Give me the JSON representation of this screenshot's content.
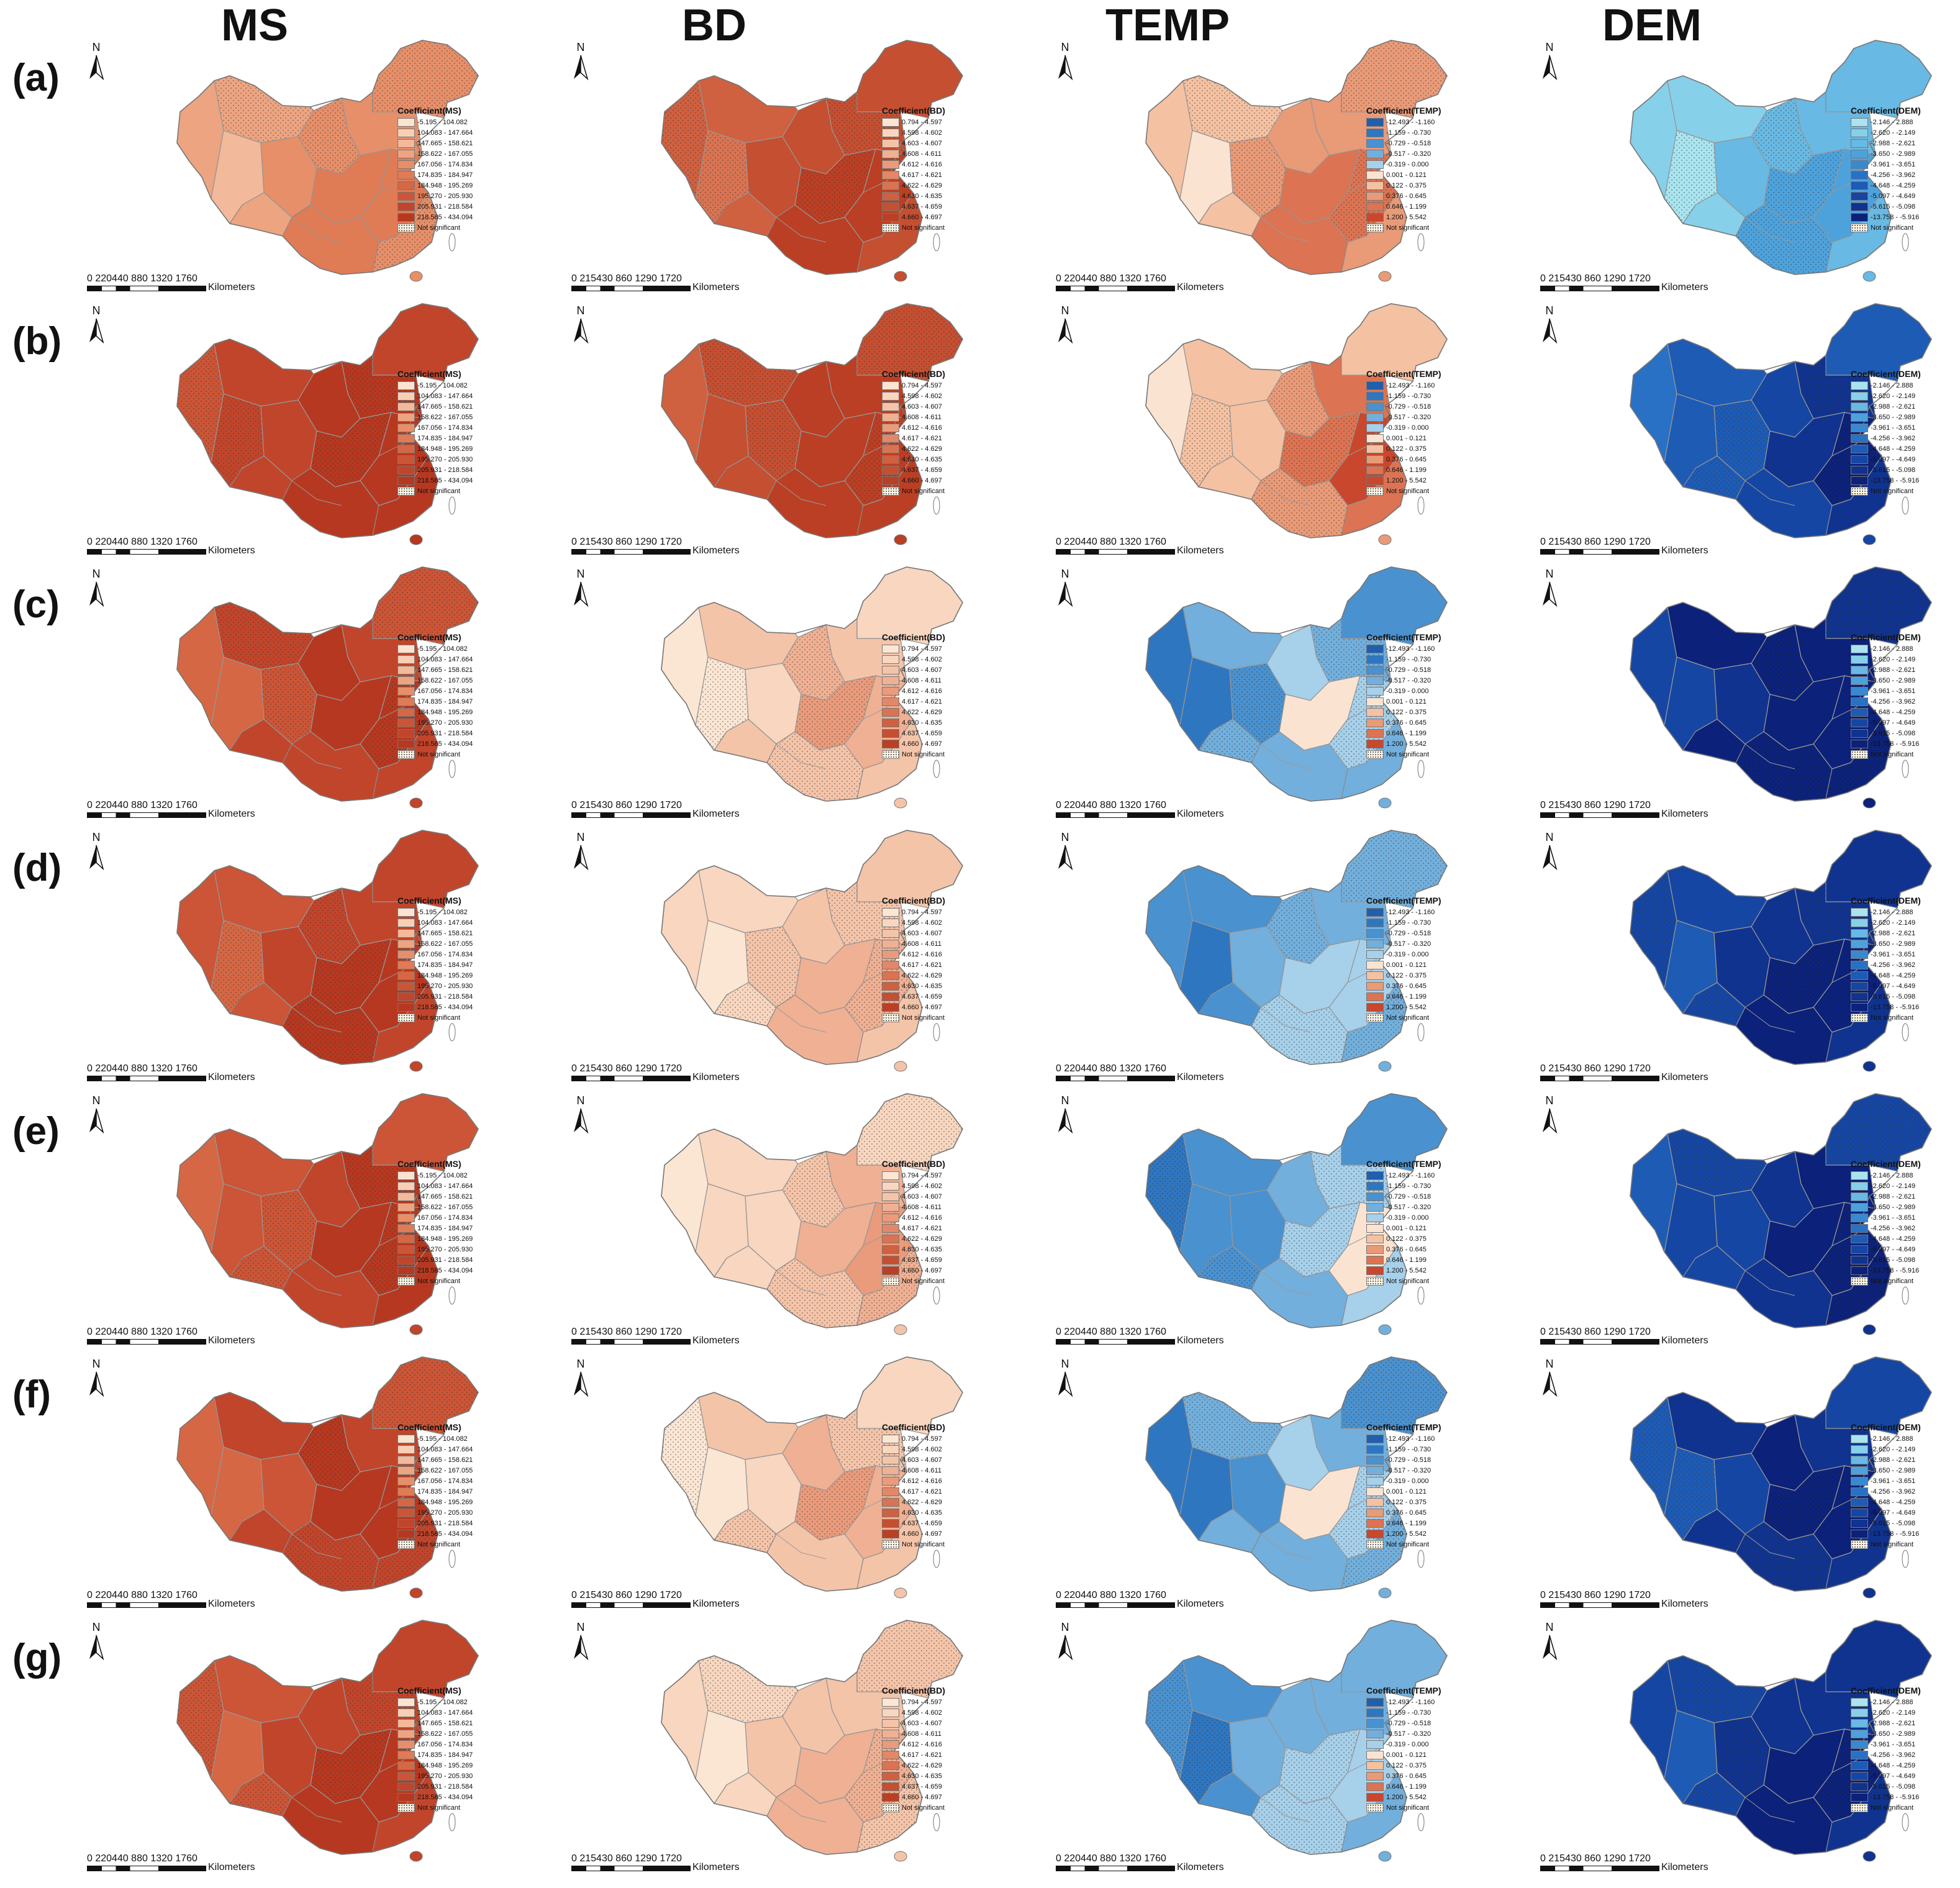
{
  "columns": [
    {
      "title": "MS",
      "legend_title": "Coefficient(MS)",
      "scale_ticks": "0  220440   880    1320    1760",
      "scale_unit": "Kilometers",
      "classes": [
        "-5.195 - 104.082",
        "104.083 - 147.664",
        "147.665 - 158.621",
        "158.622 - 167.055",
        "167.056 - 174.834",
        "174.835 - 184.947",
        "184.948 - 195.269",
        "195.270 - 205.930",
        "205.931 - 218.584",
        "218.585 - 434.094"
      ],
      "colors": [
        "#fbe3d2",
        "#f7cfb5",
        "#f2b99a",
        "#eda481",
        "#e68f69",
        "#df7b55",
        "#d56744",
        "#cb5536",
        "#c1452b",
        "#b73820"
      ]
    },
    {
      "title": "BD",
      "legend_title": "Coefficient(BD)",
      "scale_ticks": "0  215430   860    1290    1720",
      "scale_unit": "Kilometers",
      "classes": [
        "0.794 - 4.597",
        "4.598 - 4.602",
        "4.603 - 4.607",
        "4.608 - 4.611",
        "4.612 - 4.616",
        "4.617 - 4.621",
        "4.622 - 4.629",
        "4.630 - 4.635",
        "4.637 - 4.659",
        "4.660 - 4.697"
      ],
      "colors": [
        "#fbe6d4",
        "#f8d6bf",
        "#f4c4a9",
        "#efb093",
        "#e99b7c",
        "#e28767",
        "#d97352",
        "#cf6040",
        "#c54f31",
        "#bb3f24"
      ]
    },
    {
      "title": "TEMP",
      "legend_title": "Coefficient(TEMP)",
      "scale_ticks": "0  220440   880    1320    1760",
      "scale_unit": "Kilometers",
      "classes": [
        "-12.493 - -1.160",
        "-1.159 - -0.730",
        "-0.729 - -0.518",
        "-0.517 - -0.320",
        "-0.319 - 0.000",
        "0.001 - 0.121",
        "0.122 - 0.375",
        "0.376 - 0.645",
        "0.646 - 1.199",
        "1.200 - 5.542"
      ],
      "colors": [
        "#1f5fae",
        "#2f76c0",
        "#4a91cf",
        "#72afdc",
        "#a7d0ea",
        "#fbe3d2",
        "#f4c1a2",
        "#e99a77",
        "#dc7352",
        "#c9472d"
      ]
    },
    {
      "title": "DEM",
      "legend_title": "Coefficient(DEM)",
      "scale_ticks": "0  215430   860    1290    1720",
      "scale_unit": "Kilometers",
      "classes": [
        "-2.146 - 2.888",
        "-2.620 - -2.149",
        "-2.988 - -2.621",
        "-3.650 - -2.989",
        "-3.961 - -3.651",
        "-4.256 - -3.962",
        "-4.648 - -4.259",
        "-5.097 - -4.649",
        "-5.615 - -5.098",
        "-13.758 - -5.916"
      ],
      "colors": [
        "#a9e4ef",
        "#86d0ea",
        "#68b9e3",
        "#4ea2db",
        "#3889d1",
        "#2871c4",
        "#1d5bb5",
        "#1546a3",
        "#10338f",
        "#0b217a"
      ]
    }
  ],
  "not_significant_label": "Not significant",
  "north_label": "N",
  "rows": [
    {
      "label": "(a)",
      "levels": [
        3,
        7,
        6,
        1
      ]
    },
    {
      "label": "(b)",
      "levels": [
        8,
        8,
        6,
        6
      ]
    },
    {
      "label": "(c)",
      "levels": [
        7,
        1,
        2,
        8
      ]
    },
    {
      "label": "(d)",
      "levels": [
        7,
        1,
        2,
        7
      ]
    },
    {
      "label": "(e)",
      "levels": [
        7,
        1,
        2,
        7
      ]
    },
    {
      "label": "(f)",
      "levels": [
        7,
        1,
        2,
        7
      ]
    },
    {
      "label": "(g)",
      "levels": [
        7,
        1,
        2,
        7
      ]
    }
  ]
}
